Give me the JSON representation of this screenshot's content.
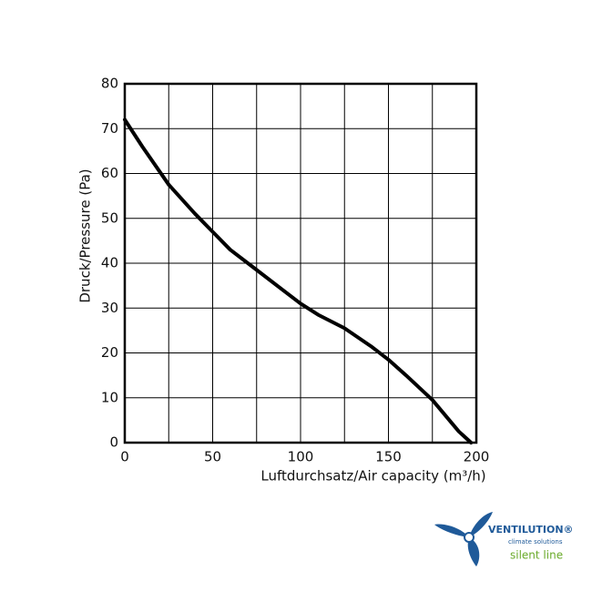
{
  "chart_data": {
    "type": "line",
    "y_label": "Druck/Pressure (Pa)",
    "x_label": "Luftdurchsatz/Air capacity (m³/h)",
    "x": [
      0,
      10,
      25,
      40,
      50,
      60,
      75,
      90,
      100,
      110,
      125,
      140,
      150,
      160,
      175,
      190,
      197
    ],
    "values": [
      72,
      66,
      57.5,
      51,
      47,
      43,
      38.5,
      34,
      31,
      28.5,
      25.5,
      21.5,
      18.5,
      15,
      9.5,
      2.5,
      0
    ],
    "color": "#000000",
    "xlim": [
      0,
      200
    ],
    "xticks": [
      0,
      50,
      100,
      150,
      200
    ],
    "xminor": [
      25,
      75,
      125,
      175
    ],
    "ylim": [
      0,
      80
    ],
    "yticks": [
      0,
      10,
      20,
      30,
      40,
      50,
      60,
      70,
      80
    ],
    "grid": true
  },
  "brand": {
    "name": "VENTILUTION®",
    "tagline": "climate solutions",
    "line": "silent line"
  }
}
